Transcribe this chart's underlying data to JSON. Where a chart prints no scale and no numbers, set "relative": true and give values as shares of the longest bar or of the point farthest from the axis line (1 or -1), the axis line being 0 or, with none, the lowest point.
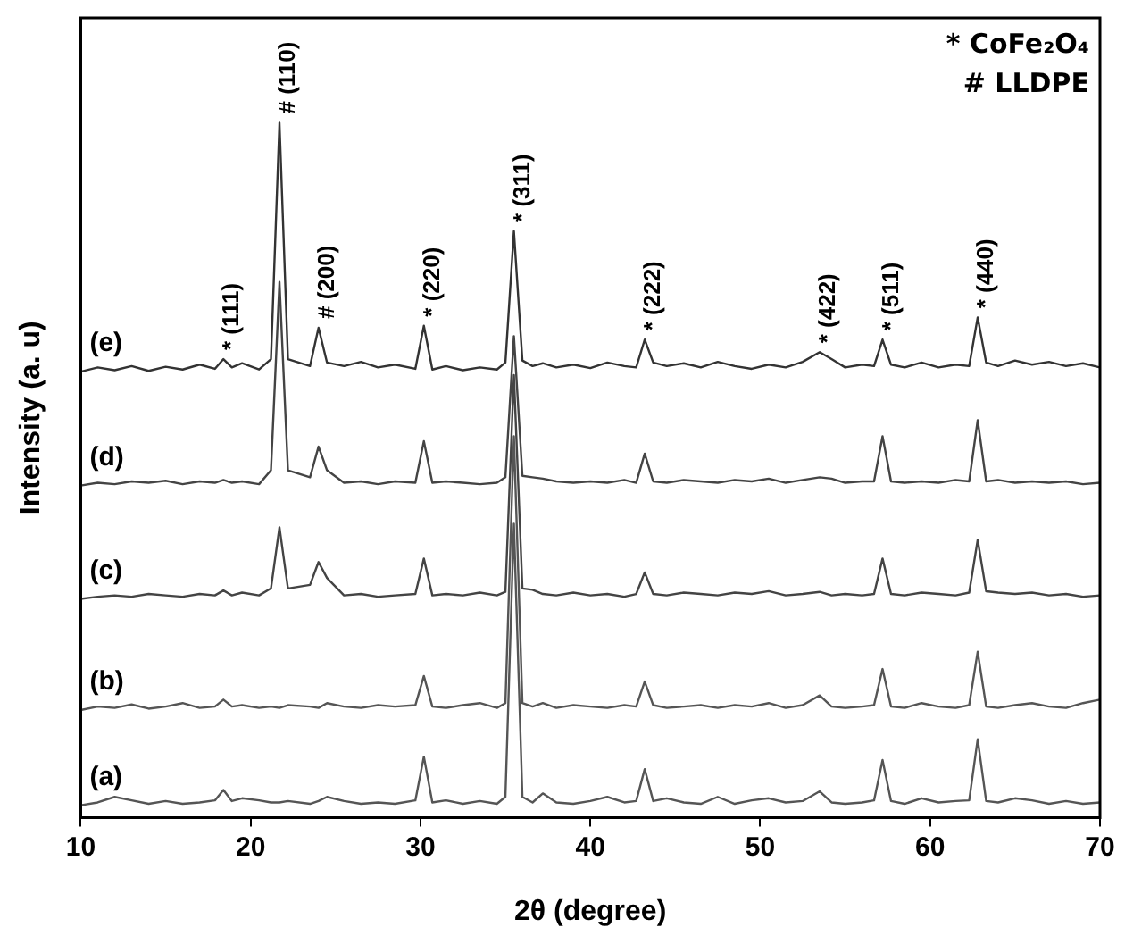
{
  "chart_data": {
    "type": "line",
    "relative": true,
    "xlabel": "2θ (degree)",
    "ylabel": "Intensity (a. u)",
    "xlim": [
      10,
      70
    ],
    "xticks": [
      10,
      20,
      30,
      40,
      50,
      60,
      70
    ],
    "grid": false,
    "legend": false,
    "marker": "none",
    "line_style": "solid",
    "x": [
      10,
      11,
      12,
      13,
      14,
      15,
      16,
      17,
      17.9,
      18.4,
      18.9,
      19.5,
      20.5,
      21.2,
      21.7,
      22.2,
      23.5,
      24.0,
      24.5,
      25.5,
      26.5,
      27.5,
      28.5,
      29.7,
      30.2,
      30.7,
      31.5,
      32.5,
      33.5,
      34.5,
      35.0,
      35.5,
      36.0,
      36.6,
      37.2,
      38,
      39,
      40,
      41,
      42,
      42.7,
      43.2,
      43.7,
      44.5,
      45.5,
      46.5,
      47.5,
      48.5,
      49.5,
      50.5,
      51.5,
      52.5,
      53.5,
      54.2,
      55,
      56,
      56.7,
      57.2,
      57.7,
      58.5,
      59.5,
      60.5,
      61.5,
      62.3,
      62.8,
      63.3,
      64,
      65,
      66,
      67,
      68,
      69,
      70
    ],
    "series": [
      {
        "name": "(a)",
        "color": "#555555",
        "values": [
          0.018,
          0.022,
          0.03,
          0.025,
          0.02,
          0.024,
          0.02,
          0.022,
          0.025,
          0.04,
          0.024,
          0.028,
          0.025,
          0.022,
          0.022,
          0.024,
          0.02,
          0.024,
          0.03,
          0.024,
          0.02,
          0.022,
          0.02,
          0.025,
          0.088,
          0.022,
          0.025,
          0.02,
          0.024,
          0.02,
          0.03,
          0.423,
          0.03,
          0.022,
          0.035,
          0.022,
          0.02,
          0.024,
          0.03,
          0.022,
          0.024,
          0.07,
          0.024,
          0.028,
          0.022,
          0.02,
          0.03,
          0.02,
          0.025,
          0.028,
          0.022,
          0.024,
          0.038,
          0.022,
          0.02,
          0.022,
          0.025,
          0.083,
          0.024,
          0.02,
          0.028,
          0.022,
          0.024,
          0.025,
          0.113,
          0.024,
          0.022,
          0.028,
          0.025,
          0.02,
          0.024,
          0.02,
          0.022
        ]
      },
      {
        "name": "(b)",
        "color": "#555555",
        "values": [
          0.155,
          0.16,
          0.158,
          0.163,
          0.157,
          0.16,
          0.165,
          0.158,
          0.16,
          0.17,
          0.16,
          0.162,
          0.158,
          0.16,
          0.158,
          0.162,
          0.16,
          0.158,
          0.165,
          0.16,
          0.158,
          0.162,
          0.16,
          0.162,
          0.204,
          0.16,
          0.158,
          0.162,
          0.165,
          0.158,
          0.165,
          0.549,
          0.165,
          0.16,
          0.165,
          0.158,
          0.162,
          0.16,
          0.158,
          0.162,
          0.16,
          0.196,
          0.162,
          0.158,
          0.16,
          0.162,
          0.158,
          0.162,
          0.16,
          0.165,
          0.158,
          0.162,
          0.176,
          0.16,
          0.158,
          0.16,
          0.162,
          0.214,
          0.16,
          0.158,
          0.165,
          0.16,
          0.158,
          0.162,
          0.239,
          0.16,
          0.158,
          0.162,
          0.165,
          0.16,
          0.158,
          0.165,
          0.17
        ]
      },
      {
        "name": "(c)",
        "color": "#444444",
        "values": [
          0.315,
          0.318,
          0.32,
          0.318,
          0.322,
          0.32,
          0.318,
          0.322,
          0.32,
          0.327,
          0.32,
          0.324,
          0.32,
          0.33,
          0.418,
          0.33,
          0.335,
          0.368,
          0.345,
          0.32,
          0.322,
          0.318,
          0.32,
          0.322,
          0.373,
          0.32,
          0.322,
          0.32,
          0.324,
          0.32,
          0.325,
          0.637,
          0.33,
          0.328,
          0.322,
          0.32,
          0.324,
          0.32,
          0.322,
          0.318,
          0.322,
          0.353,
          0.322,
          0.32,
          0.324,
          0.322,
          0.32,
          0.324,
          0.322,
          0.326,
          0.32,
          0.322,
          0.325,
          0.32,
          0.322,
          0.32,
          0.322,
          0.373,
          0.322,
          0.32,
          0.324,
          0.322,
          0.32,
          0.324,
          0.4,
          0.326,
          0.324,
          0.322,
          0.324,
          0.32,
          0.322,
          0.318,
          0.32
        ]
      },
      {
        "name": "(d)",
        "color": "#444444",
        "values": [
          0.478,
          0.482,
          0.48,
          0.484,
          0.482,
          0.485,
          0.48,
          0.484,
          0.482,
          0.486,
          0.482,
          0.484,
          0.48,
          0.5,
          0.771,
          0.5,
          0.49,
          0.534,
          0.5,
          0.482,
          0.484,
          0.48,
          0.484,
          0.482,
          0.542,
          0.482,
          0.484,
          0.482,
          0.48,
          0.482,
          0.49,
          0.693,
          0.492,
          0.49,
          0.488,
          0.484,
          0.482,
          0.484,
          0.482,
          0.486,
          0.482,
          0.524,
          0.484,
          0.482,
          0.486,
          0.484,
          0.482,
          0.486,
          0.484,
          0.488,
          0.482,
          0.486,
          0.49,
          0.488,
          0.482,
          0.484,
          0.484,
          0.549,
          0.484,
          0.482,
          0.484,
          0.482,
          0.486,
          0.484,
          0.572,
          0.484,
          0.486,
          0.482,
          0.484,
          0.482,
          0.484,
          0.48,
          0.482
        ]
      },
      {
        "name": "(e)",
        "color": "#333333",
        "values": [
          0.642,
          0.648,
          0.644,
          0.65,
          0.643,
          0.649,
          0.645,
          0.652,
          0.646,
          0.66,
          0.648,
          0.654,
          0.645,
          0.66,
          1.0,
          0.66,
          0.65,
          0.705,
          0.655,
          0.65,
          0.656,
          0.648,
          0.652,
          0.646,
          0.708,
          0.645,
          0.65,
          0.644,
          0.648,
          0.645,
          0.655,
          0.844,
          0.658,
          0.65,
          0.654,
          0.648,
          0.652,
          0.647,
          0.655,
          0.65,
          0.648,
          0.688,
          0.655,
          0.65,
          0.654,
          0.648,
          0.656,
          0.65,
          0.646,
          0.652,
          0.648,
          0.656,
          0.67,
          0.66,
          0.648,
          0.652,
          0.65,
          0.688,
          0.652,
          0.648,
          0.655,
          0.648,
          0.652,
          0.65,
          0.72,
          0.655,
          0.65,
          0.658,
          0.652,
          0.656,
          0.65,
          0.654,
          0.648
        ]
      }
    ],
    "annotations": [
      {
        "text": "* (111)",
        "x": 18.4,
        "y": 0.66
      },
      {
        "text": "# (110)",
        "x": 21.7,
        "y": 1.0
      },
      {
        "text": "# (200)",
        "x": 24.0,
        "y": 0.705
      },
      {
        "text": "* (220)",
        "x": 30.2,
        "y": 0.708
      },
      {
        "text": "* (311)",
        "x": 35.5,
        "y": 0.844
      },
      {
        "text": "* (222)",
        "x": 43.2,
        "y": 0.688
      },
      {
        "text": "* (422)",
        "x": 53.5,
        "y": 0.67
      },
      {
        "text": "* (511)",
        "x": 57.2,
        "y": 0.688
      },
      {
        "text": "* (440)",
        "x": 62.8,
        "y": 0.72
      },
      "* CoFe₂O₄",
      "# LLDPE"
    ]
  }
}
